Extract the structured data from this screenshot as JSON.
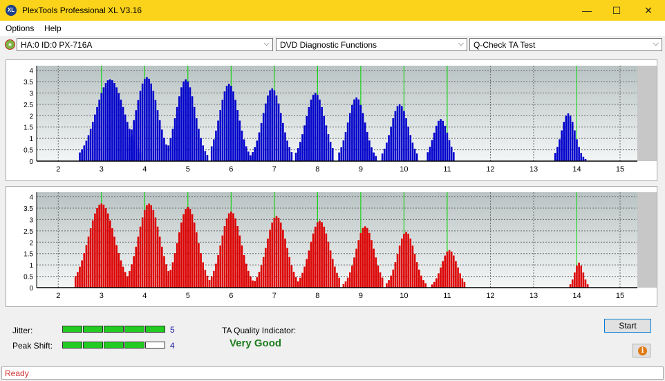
{
  "window": {
    "title": "PlexTools Professional XL V3.16",
    "icon_text": "XL",
    "minimize_glyph": "—",
    "maximize_glyph": "☐",
    "close_glyph": "✕"
  },
  "menu": {
    "items": [
      "Options",
      "Help"
    ]
  },
  "toolbar": {
    "drive_select": "HA:0 ID:0  PX-716A",
    "function_select": "DVD Diagnostic Functions",
    "test_select": "Q-Check TA Test",
    "arrow_glyph": "⌵"
  },
  "chart_data": [
    {
      "type": "bar",
      "name_note": "upper panel (blue)",
      "color": "#0000cc",
      "x_ticks": [
        2,
        3,
        4,
        5,
        6,
        7,
        8,
        9,
        10,
        11,
        12,
        13,
        14,
        15
      ],
      "y_ticks": [
        "0",
        "0.5",
        "1",
        "1.5",
        "2",
        "2.5",
        "3",
        "3.5",
        "4"
      ],
      "xlim": [
        1.5,
        15.4
      ],
      "ylim": [
        0,
        4.2
      ],
      "marker_lines_x": [
        3,
        4,
        5,
        6,
        7,
        8,
        9,
        10,
        11,
        14
      ],
      "marker_color": "#00dd00",
      "peaks": [
        {
          "center": 3.2,
          "height": 3.6,
          "width": 0.33,
          "start": 2.5,
          "end": 3.9
        },
        {
          "center": 4.05,
          "height": 3.7,
          "width": 0.25,
          "start": 3.6,
          "end": 4.5
        },
        {
          "center": 4.95,
          "height": 3.6,
          "width": 0.22,
          "start": 4.55,
          "end": 5.45
        },
        {
          "center": 5.95,
          "height": 3.4,
          "width": 0.22,
          "start": 5.55,
          "end": 6.45
        },
        {
          "center": 6.95,
          "height": 3.2,
          "width": 0.22,
          "start": 6.5,
          "end": 7.4
        },
        {
          "center": 7.95,
          "height": 3.0,
          "width": 0.22,
          "start": 7.5,
          "end": 8.35
        },
        {
          "center": 8.9,
          "height": 2.8,
          "width": 0.2,
          "start": 8.5,
          "end": 9.35
        },
        {
          "center": 9.9,
          "height": 2.5,
          "width": 0.2,
          "start": 9.5,
          "end": 10.3
        },
        {
          "center": 10.85,
          "height": 1.85,
          "width": 0.17,
          "start": 10.55,
          "end": 11.15
        },
        {
          "center": 13.8,
          "height": 2.1,
          "width": 0.16,
          "start": 13.5,
          "end": 14.25
        }
      ]
    },
    {
      "type": "bar",
      "name_note": "lower panel (red)",
      "color": "#dd0000",
      "x_ticks": [
        2,
        3,
        4,
        5,
        6,
        7,
        8,
        9,
        10,
        11,
        12,
        13,
        14,
        15
      ],
      "y_ticks": [
        "0",
        "0.5",
        "1",
        "1.5",
        "2",
        "2.5",
        "3",
        "3.5",
        "4"
      ],
      "xlim": [
        1.5,
        15.4
      ],
      "ylim": [
        0,
        4.2
      ],
      "marker_lines_x": [
        3,
        4,
        5,
        6,
        7,
        8,
        9,
        10,
        11,
        14
      ],
      "marker_color": "#00dd00",
      "peaks": [
        {
          "center": 3.0,
          "height": 3.7,
          "width": 0.3,
          "start": 2.4,
          "end": 3.6
        },
        {
          "center": 4.1,
          "height": 3.7,
          "width": 0.25,
          "start": 3.6,
          "end": 4.6
        },
        {
          "center": 5.0,
          "height": 3.55,
          "width": 0.23,
          "start": 4.55,
          "end": 5.5
        },
        {
          "center": 6.0,
          "height": 3.35,
          "width": 0.23,
          "start": 5.55,
          "end": 6.5
        },
        {
          "center": 7.05,
          "height": 3.15,
          "width": 0.23,
          "start": 6.55,
          "end": 7.5
        },
        {
          "center": 8.05,
          "height": 2.95,
          "width": 0.23,
          "start": 7.55,
          "end": 8.5
        },
        {
          "center": 9.1,
          "height": 2.7,
          "width": 0.21,
          "start": 8.6,
          "end": 9.5
        },
        {
          "center": 10.05,
          "height": 2.45,
          "width": 0.2,
          "start": 9.6,
          "end": 10.5
        },
        {
          "center": 11.05,
          "height": 1.65,
          "width": 0.18,
          "start": 10.65,
          "end": 11.4
        },
        {
          "center": 14.05,
          "height": 1.1,
          "width": 0.1,
          "start": 13.85,
          "end": 14.35
        }
      ]
    }
  ],
  "metrics": {
    "jitter_label": "Jitter:",
    "jitter_value": "5",
    "jitter_level": 5,
    "peak_shift_label": "Peak Shift:",
    "peak_shift_value": "4",
    "peak_shift_level": 4,
    "meter_max": 5
  },
  "quality": {
    "label": "TA Quality Indicator:",
    "value": "Very Good"
  },
  "buttons": {
    "start": "Start",
    "info_glyph": "i"
  },
  "status": {
    "text": "Ready"
  }
}
